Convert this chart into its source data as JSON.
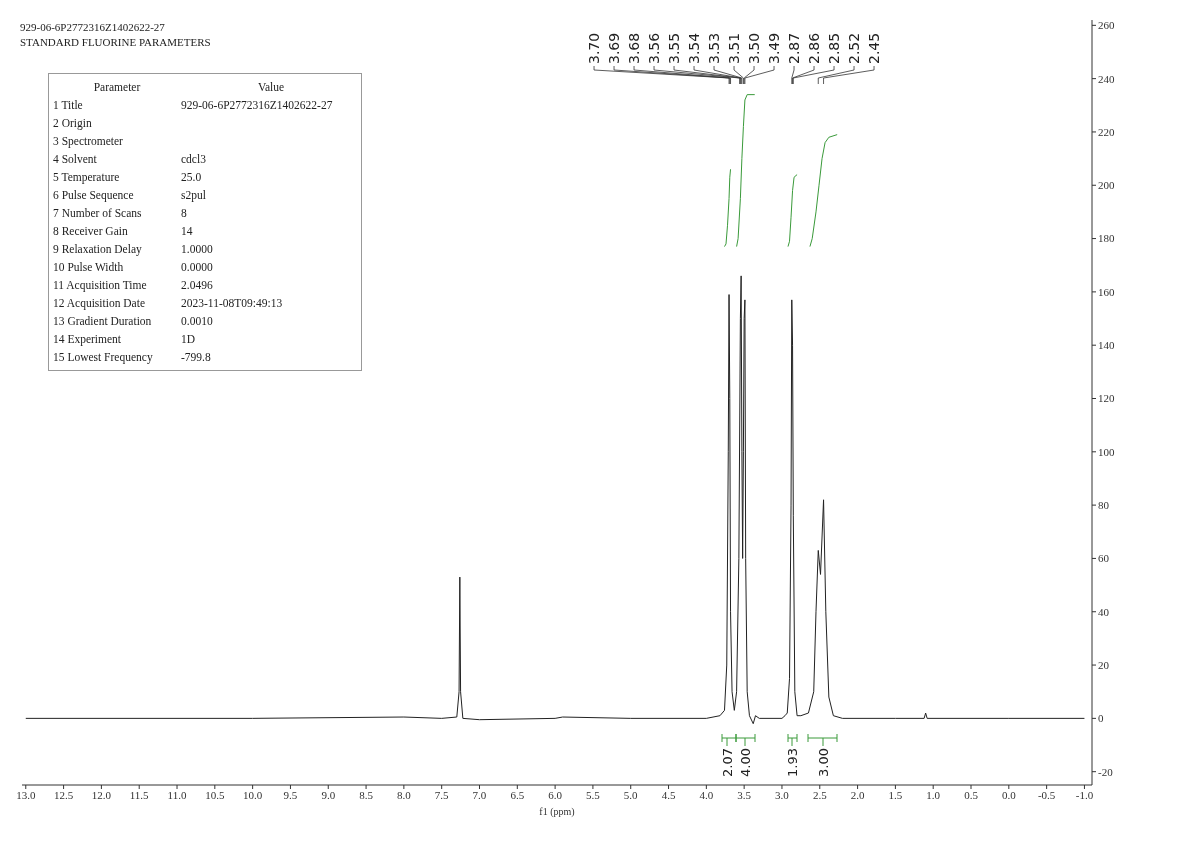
{
  "chart_data": {
    "type": "line",
    "title": "929-06-6P2772316Z1402622-27",
    "subtitle": "STANDARD FLUORINE PARAMETERS",
    "xlabel": "f1 (ppm)",
    "xlim": [
      13.05,
      -1.1
    ],
    "ylim": [
      -25,
      262
    ],
    "xticks": [
      {
        "value": 13,
        "label": "13.0"
      },
      12.5,
      {
        "value": 12,
        "label": "12.0"
      },
      11.5,
      {
        "value": 11,
        "label": "11.0"
      },
      10.5,
      {
        "value": 10,
        "label": "10.0"
      },
      9.5,
      {
        "value": 9,
        "label": "9.0"
      },
      8.5,
      {
        "value": 8,
        "label": "8.0"
      },
      7.5,
      {
        "value": 7,
        "label": "7.0"
      },
      6.5,
      {
        "value": 6,
        "label": "6.0"
      },
      5.5,
      {
        "value": 5,
        "label": "5.0"
      },
      4.5,
      {
        "value": 4,
        "label": "4.0"
      },
      3.5,
      {
        "value": 3,
        "label": "3.0"
      },
      2.5,
      {
        "value": 2,
        "label": "2.0"
      },
      1.5,
      {
        "value": 1,
        "label": "1.0"
      },
      0.5,
      {
        "value": 0,
        "label": "0.0"
      },
      -0.5,
      {
        "value": -1,
        "label": "-1.0"
      }
    ],
    "yticks": [
      -20,
      0,
      20,
      40,
      60,
      80,
      100,
      120,
      140,
      160,
      180,
      200,
      220,
      240,
      260
    ],
    "grid": false,
    "line_style": "solid",
    "series": [
      {
        "color": "#222222",
        "x": [
          13.0,
          10.0,
          8.0,
          7.5,
          7.3,
          7.27,
          7.26,
          7.25,
          7.22,
          7.0,
          6.0,
          5.9,
          5.0,
          4.0,
          3.82,
          3.76,
          3.73,
          3.71,
          3.7,
          3.69,
          3.68,
          3.66,
          3.63,
          3.6,
          3.57,
          3.55,
          3.54,
          3.53,
          3.52,
          3.51,
          3.5,
          3.49,
          3.48,
          3.46,
          3.43,
          3.38,
          3.35,
          3.3,
          3.0,
          2.96,
          2.93,
          2.9,
          2.88,
          2.87,
          2.86,
          2.85,
          2.83,
          2.8,
          2.75,
          2.65,
          2.58,
          2.55,
          2.52,
          2.49,
          2.45,
          2.42,
          2.38,
          2.32,
          2.2,
          1.5,
          1.12,
          1.1,
          1.08,
          0.0,
          -1.0
        ],
        "values": [
          0,
          0,
          0.5,
          0,
          0.5,
          10,
          53,
          10,
          0,
          -0.5,
          0,
          0.5,
          0,
          0,
          1,
          3,
          20,
          100,
          159,
          120,
          40,
          10,
          3,
          10,
          60,
          150,
          166,
          100,
          60,
          100,
          150,
          157,
          60,
          10,
          1,
          -2,
          1,
          0,
          0,
          1,
          2,
          15,
          80,
          157,
          140,
          76,
          10,
          1,
          1,
          2,
          10,
          40,
          63,
          54,
          82,
          40,
          8,
          1,
          0,
          0,
          0,
          2,
          0,
          0,
          0
        ]
      },
      {
        "color": "#3a9a3a",
        "x": [
          3.76,
          3.74,
          3.72,
          3.7,
          3.69,
          3.68
        ],
        "values": [
          177,
          178,
          185,
          195,
          203,
          206
        ]
      },
      {
        "color": "#3a9a3a",
        "x": [
          3.6,
          3.58,
          3.55,
          3.53,
          3.51,
          3.49,
          3.46,
          3.36
        ],
        "values": [
          177,
          180,
          195,
          210,
          222,
          232,
          234,
          234
        ]
      },
      {
        "color": "#3a9a3a",
        "x": [
          2.92,
          2.9,
          2.88,
          2.86,
          2.84,
          2.8
        ],
        "values": [
          177,
          179,
          188,
          198,
          203,
          204
        ]
      },
      {
        "color": "#3a9a3a",
        "x": [
          2.63,
          2.6,
          2.55,
          2.51,
          2.47,
          2.43,
          2.38,
          2.27
        ],
        "values": [
          177,
          180,
          190,
          200,
          210,
          216,
          218,
          219
        ]
      }
    ],
    "annotations": [
      "Parameter\tValue",
      "1 Title\t929-06-6P2772316Z1402622-27",
      "2 Origin",
      "3 Spectrometer",
      "4 Solvent\tcdcl3",
      "5 Temperature\t25.0",
      "6 Pulse Sequence\ts2pul",
      "7 Number of Scans\t8",
      "8 Receiver Gain\t14",
      "9 Relaxation Delay\t1.0000",
      "10 Pulse Width\t0.0000",
      "11 Acquisition Time\t2.0496",
      "12 Acquisition Date\t2023-11-08T09:49:13",
      "13 Gradient Duration\t0.0010",
      "14 Experiment\t1D",
      "15 Lowest Frequency\t-799.8",
      {
        "text": "3.70",
        "x": 3.7
      },
      {
        "text": "3.69",
        "x": 3.69
      },
      {
        "text": "3.68",
        "x": 3.68
      },
      {
        "text": "3.56",
        "x": 3.56
      },
      {
        "text": "3.55",
        "x": 3.55
      },
      {
        "text": "3.54",
        "x": 3.54
      },
      {
        "text": "3.53",
        "x": 3.53
      },
      {
        "text": "3.51",
        "x": 3.51
      },
      {
        "text": "3.50",
        "x": 3.5
      },
      {
        "text": "3.49",
        "x": 3.49
      },
      {
        "text": "2.87",
        "x": 2.87
      },
      {
        "text": "2.86",
        "x": 2.86
      },
      {
        "text": "2.85",
        "x": 2.85
      },
      {
        "text": "2.52",
        "x": 2.52
      },
      {
        "text": "2.45",
        "x": 2.45
      },
      "2.07",
      "4.00",
      "1.93",
      "3.00"
    ]
  }
}
